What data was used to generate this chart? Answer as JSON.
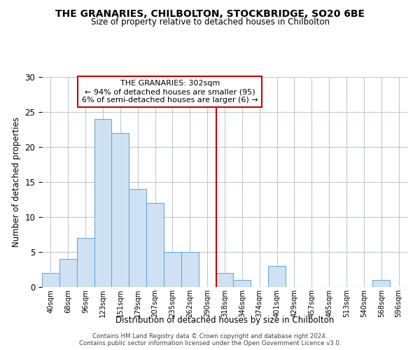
{
  "title": "THE GRANARIES, CHILBOLTON, STOCKBRIDGE, SO20 6BE",
  "subtitle": "Size of property relative to detached houses in Chilbolton",
  "xlabel": "Distribution of detached houses by size in Chilbolton",
  "ylabel": "Number of detached properties",
  "bin_labels": [
    "40sqm",
    "68sqm",
    "96sqm",
    "123sqm",
    "151sqm",
    "179sqm",
    "207sqm",
    "235sqm",
    "262sqm",
    "290sqm",
    "318sqm",
    "346sqm",
    "374sqm",
    "401sqm",
    "429sqm",
    "457sqm",
    "485sqm",
    "513sqm",
    "540sqm",
    "568sqm",
    "596sqm"
  ],
  "bar_values": [
    2,
    4,
    7,
    24,
    22,
    14,
    12,
    5,
    5,
    0,
    2,
    1,
    0,
    3,
    0,
    0,
    0,
    0,
    0,
    1,
    0
  ],
  "bar_color": "#cfe2f3",
  "bar_edge_color": "#6fa8dc",
  "ylim": [
    0,
    30
  ],
  "yticks": [
    0,
    5,
    10,
    15,
    20,
    25,
    30
  ],
  "vline_x_index": 9.5,
  "vline_color": "#cc0000",
  "annotation_title": "THE GRANARIES: 302sqm",
  "annotation_line1": "← 94% of detached houses are smaller (95)",
  "annotation_line2": "6% of semi-detached houses are larger (6) →",
  "footer_line1": "Contains HM Land Registry data © Crown copyright and database right 2024.",
  "footer_line2": "Contains public sector information licensed under the Open Government Licence v3.0.",
  "background_color": "#ffffff",
  "grid_color": "#c0c8d8"
}
